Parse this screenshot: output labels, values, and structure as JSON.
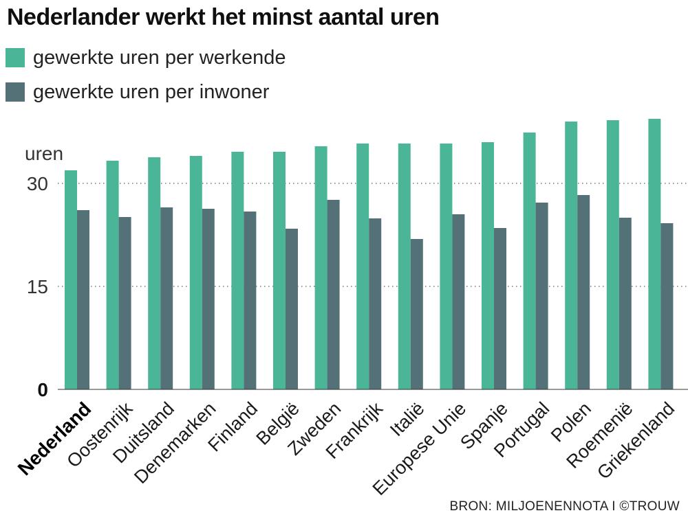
{
  "chart_data": {
    "type": "bar",
    "title": "Nederlander werkt het minst aantal uren",
    "ylabel": "uren",
    "ylim": [
      0,
      42
    ],
    "yticks": [
      0,
      15,
      30
    ],
    "grid": true,
    "legend_position": "top-left",
    "highlight_category": "Nederland",
    "categories": [
      "Nederland",
      "Oostenrijk",
      "Duitsland",
      "Denemarken",
      "Finland",
      "België",
      "Zweden",
      "Frankrijk",
      "Italië",
      "Europese Unie",
      "Spanje",
      "Portugal",
      "Polen",
      "Roemenië",
      "Griekenland"
    ],
    "series": [
      {
        "name": "gewerkte uren per werkende",
        "color": "#4ab597",
        "values": [
          31.9,
          33.3,
          33.8,
          34.0,
          34.6,
          34.6,
          35.4,
          35.8,
          35.8,
          35.8,
          36.0,
          37.4,
          39.0,
          39.2,
          39.4
        ]
      },
      {
        "name": "gewerkte uren per inwoner",
        "color": "#557178",
        "values": [
          26.1,
          25.1,
          26.5,
          26.3,
          25.9,
          23.4,
          27.6,
          24.9,
          21.9,
          25.5,
          23.5,
          27.2,
          28.3,
          25.0,
          24.2
        ]
      }
    ],
    "source": "BRON: MILJOENENNOTA I ©TROUW"
  }
}
